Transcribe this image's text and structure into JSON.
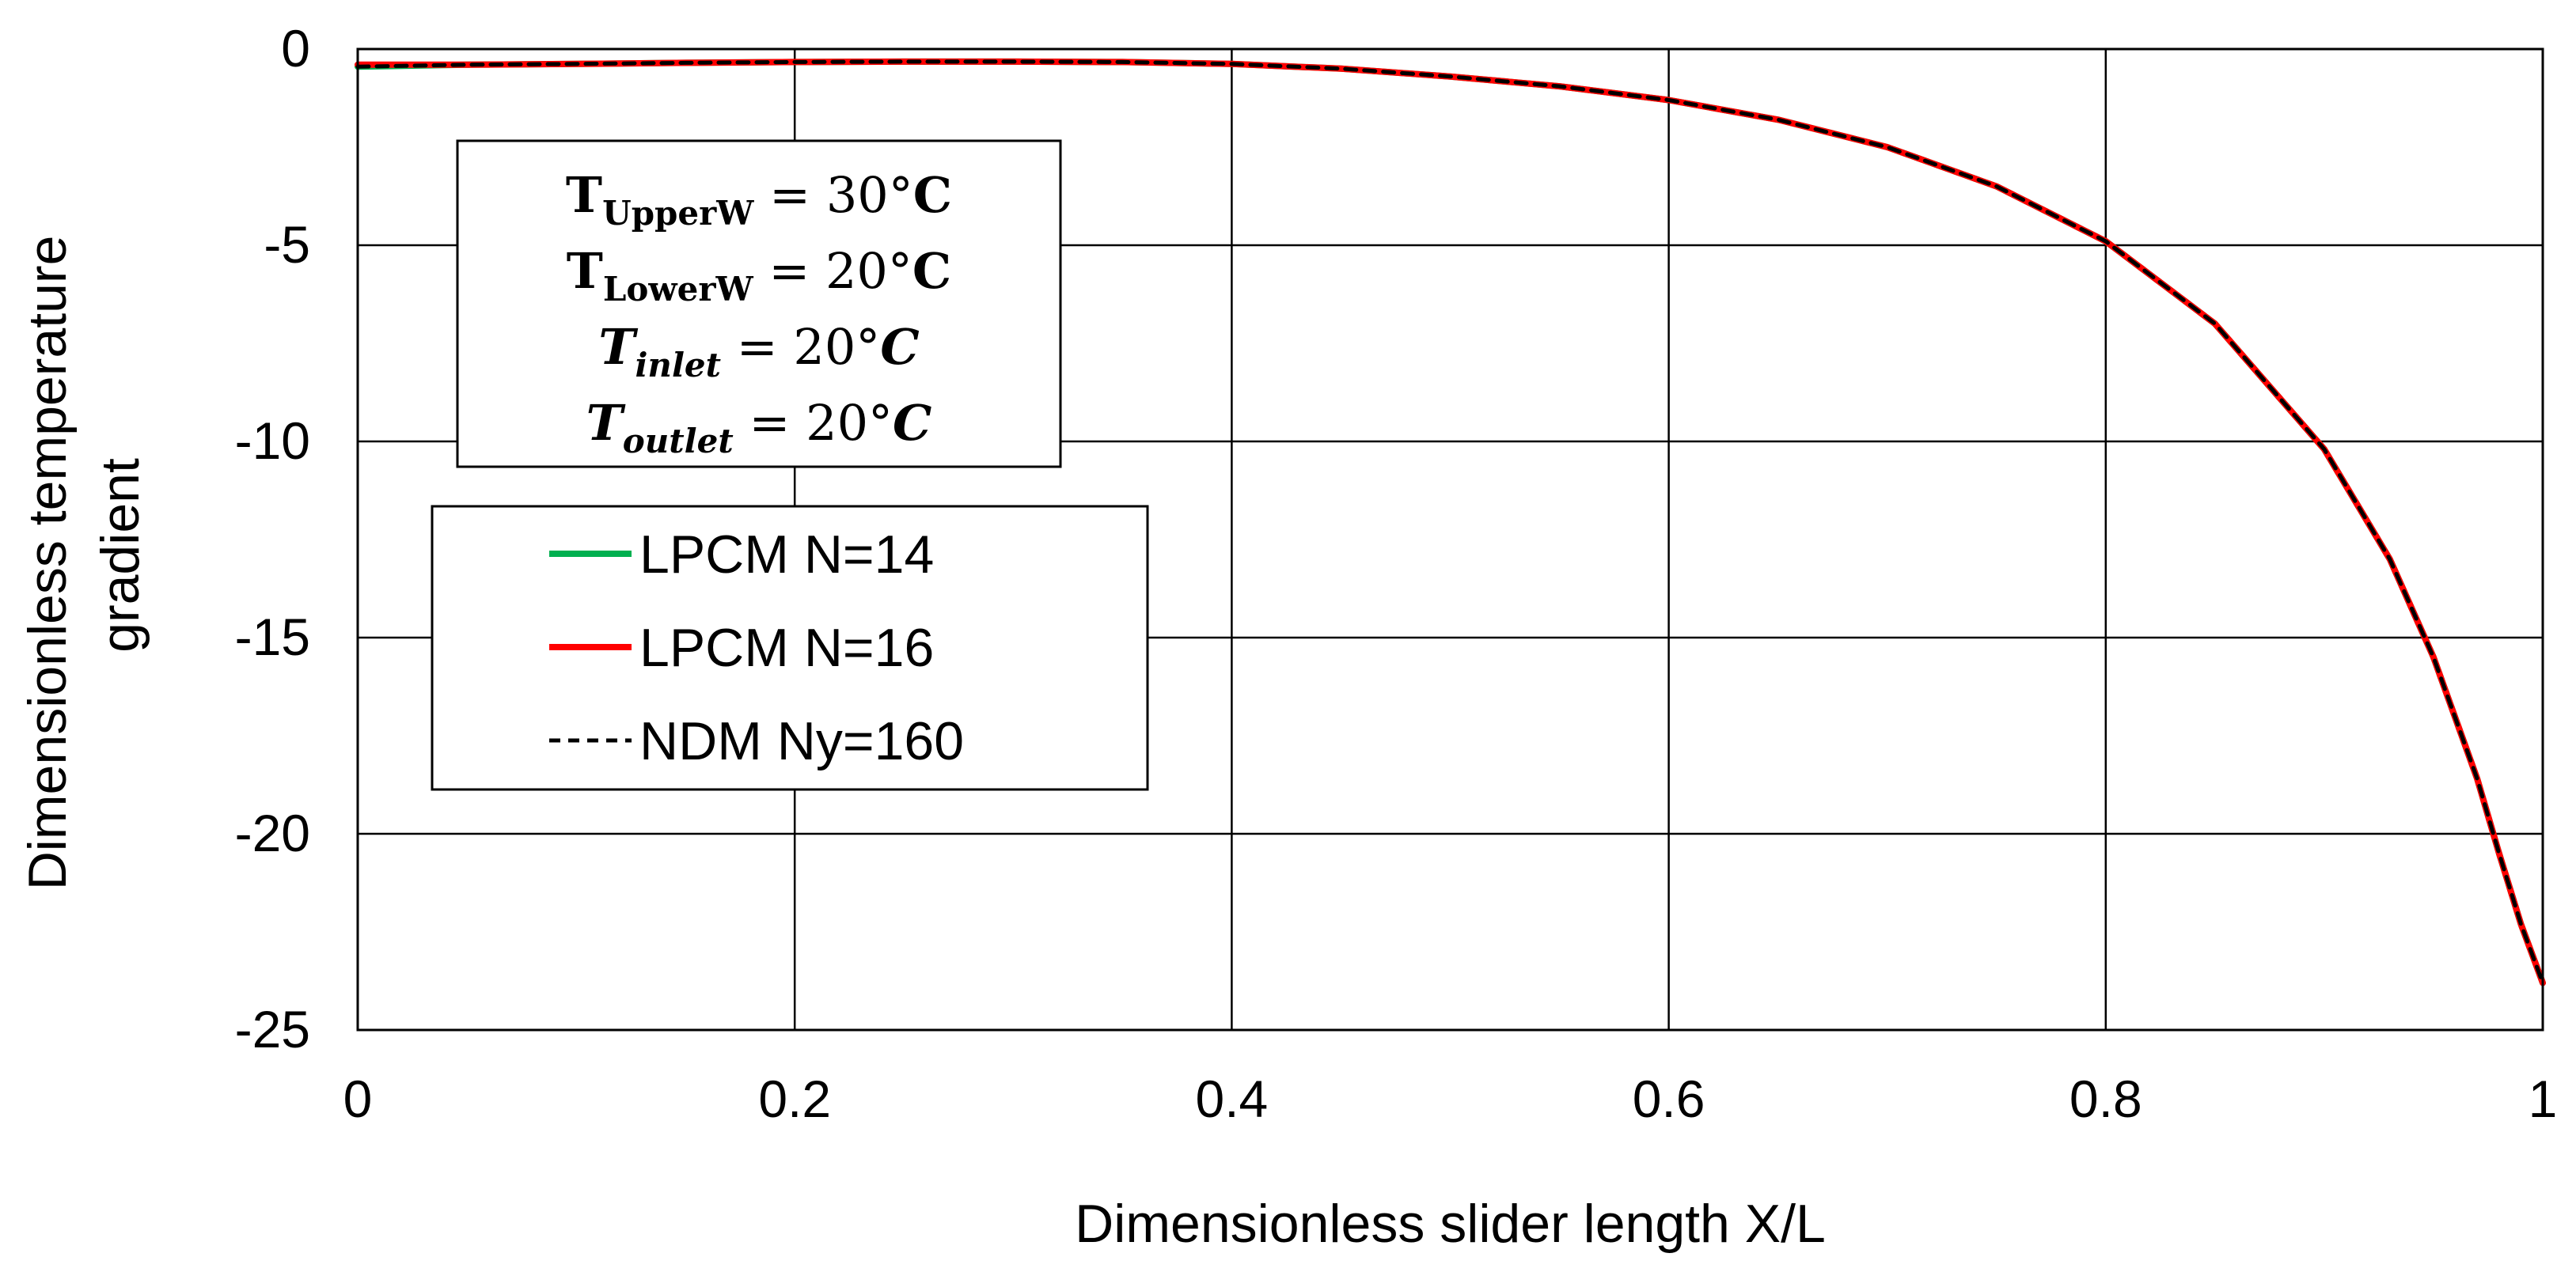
{
  "chart_data": {
    "type": "line",
    "title": "",
    "xlabel": "Dimensionless slider length X/L",
    "ylabel_lines": [
      "Dimensionless temperature",
      "gradient"
    ],
    "xlim": [
      0,
      1
    ],
    "ylim": [
      -25,
      0
    ],
    "x_ticks": [
      0,
      0.2,
      0.4,
      0.6,
      0.8,
      1
    ],
    "x_tick_labels": [
      "0",
      "0.2",
      "0.4",
      "0.6",
      "0.8",
      "1"
    ],
    "y_ticks": [
      0,
      -5,
      -10,
      -15,
      -20,
      -25
    ],
    "y_tick_labels": [
      "0",
      "-5",
      "-10",
      "-15",
      "-20",
      "-25"
    ],
    "grid": true,
    "legend_position": "left-middle",
    "conditions": [
      {
        "symbol": "T",
        "sub": "UpperW",
        "value": "30°C",
        "italic": false
      },
      {
        "symbol": "T",
        "sub": "LowerW",
        "value": "20°C",
        "italic": false
      },
      {
        "symbol": "T",
        "sub": "inlet",
        "value": "20°C",
        "italic": true
      },
      {
        "symbol": "T",
        "sub": "outlet",
        "value": "20°C",
        "italic": true
      }
    ],
    "series": [
      {
        "name": "LPCM N=14",
        "color": "#00b050",
        "dash": "solid",
        "x": [
          0,
          0.05,
          0.1,
          0.15,
          0.2,
          0.25,
          0.3,
          0.35,
          0.4,
          0.45,
          0.5,
          0.55,
          0.6,
          0.65,
          0.7,
          0.75,
          0.8,
          0.85,
          0.9,
          0.93,
          0.95,
          0.97,
          0.98,
          0.99,
          1.0
        ],
        "y": [
          -0.45,
          -0.4,
          -0.38,
          -0.35,
          -0.33,
          -0.32,
          -0.32,
          -0.33,
          -0.38,
          -0.5,
          -0.7,
          -0.95,
          -1.3,
          -1.8,
          -2.5,
          -3.5,
          -4.9,
          -7.0,
          -10.2,
          -13.0,
          -15.5,
          -18.6,
          -20.5,
          -22.3,
          -23.8
        ]
      },
      {
        "name": "LPCM N=16",
        "color": "#ff0000",
        "dash": "solid",
        "x": [
          0,
          0.05,
          0.1,
          0.15,
          0.2,
          0.25,
          0.3,
          0.35,
          0.4,
          0.45,
          0.5,
          0.55,
          0.6,
          0.65,
          0.7,
          0.75,
          0.8,
          0.85,
          0.9,
          0.93,
          0.95,
          0.97,
          0.98,
          0.99,
          1.0
        ],
        "y": [
          -0.4,
          -0.4,
          -0.38,
          -0.35,
          -0.33,
          -0.32,
          -0.32,
          -0.33,
          -0.38,
          -0.5,
          -0.7,
          -0.95,
          -1.3,
          -1.8,
          -2.5,
          -3.5,
          -4.9,
          -7.0,
          -10.2,
          -13.0,
          -15.5,
          -18.6,
          -20.5,
          -22.3,
          -23.8
        ]
      },
      {
        "name": "NDM Ny=160",
        "color": "#000000",
        "dash": "dashed",
        "x": [
          0,
          0.05,
          0.1,
          0.15,
          0.2,
          0.25,
          0.3,
          0.35,
          0.4,
          0.45,
          0.5,
          0.55,
          0.6,
          0.65,
          0.7,
          0.75,
          0.8,
          0.85,
          0.9,
          0.93,
          0.95,
          0.97,
          0.98,
          0.99,
          1.0
        ],
        "y": [
          -0.45,
          -0.4,
          -0.38,
          -0.35,
          -0.33,
          -0.32,
          -0.32,
          -0.33,
          -0.38,
          -0.5,
          -0.7,
          -0.95,
          -1.3,
          -1.8,
          -2.5,
          -3.5,
          -4.9,
          -7.0,
          -10.2,
          -13.0,
          -15.5,
          -18.6,
          -20.5,
          -22.3,
          -23.8
        ]
      }
    ]
  }
}
